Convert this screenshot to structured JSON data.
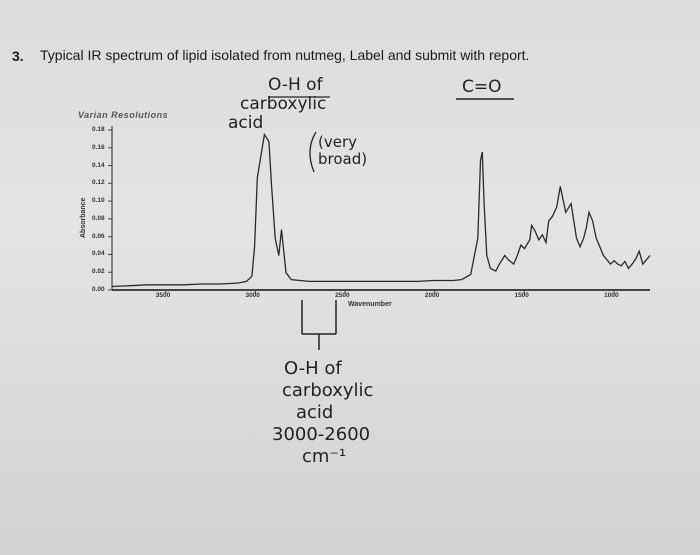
{
  "question": {
    "number": "3.",
    "text": "Typical IR spectrum of lipid isolated from nutmeg, Label and submit with report."
  },
  "handwritten": {
    "oh_top": [
      "O-H of",
      "carboxylic",
      "acid"
    ],
    "very_broad": [
      "(very",
      "broad)"
    ],
    "co_label": "C=O",
    "oh_bottom": [
      "O-H of",
      "carboxylic",
      "acid",
      "3000-2600",
      "cm⁻¹"
    ]
  },
  "chart_data": {
    "type": "line",
    "brand": "Varian Resolutions",
    "ylabel": "Absorbance",
    "xlabel": "Wavenumber",
    "yticks": [
      "0.18",
      "0.16",
      "0.14",
      "0.12",
      "0.10",
      "0.08",
      "0.06",
      "0.04",
      "0.02",
      "0.00"
    ],
    "xticks": [
      "3500",
      "3000",
      "2500",
      "2000",
      "1500",
      "1000"
    ],
    "x_range": [
      3800,
      800
    ],
    "y_range": [
      0.0,
      0.19
    ],
    "series": [
      {
        "values": [
          [
            3800,
            0.004
          ],
          [
            3700,
            0.005
          ],
          [
            3600,
            0.006
          ],
          [
            3500,
            0.006
          ],
          [
            3400,
            0.006
          ],
          [
            3300,
            0.007
          ],
          [
            3200,
            0.007
          ],
          [
            3100,
            0.008
          ],
          [
            3050,
            0.01
          ],
          [
            3020,
            0.016
          ],
          [
            3005,
            0.05
          ],
          [
            2990,
            0.13
          ],
          [
            2950,
            0.18
          ],
          [
            2925,
            0.172
          ],
          [
            2910,
            0.12
          ],
          [
            2890,
            0.06
          ],
          [
            2870,
            0.04
          ],
          [
            2855,
            0.07
          ],
          [
            2845,
            0.05
          ],
          [
            2830,
            0.02
          ],
          [
            2800,
            0.012
          ],
          [
            2700,
            0.01
          ],
          [
            2600,
            0.01
          ],
          [
            2500,
            0.01
          ],
          [
            2400,
            0.01
          ],
          [
            2300,
            0.01
          ],
          [
            2200,
            0.01
          ],
          [
            2100,
            0.01
          ],
          [
            2000,
            0.011
          ],
          [
            1900,
            0.011
          ],
          [
            1850,
            0.012
          ],
          [
            1800,
            0.018
          ],
          [
            1760,
            0.06
          ],
          [
            1745,
            0.15
          ],
          [
            1735,
            0.16
          ],
          [
            1725,
            0.1
          ],
          [
            1710,
            0.04
          ],
          [
            1690,
            0.025
          ],
          [
            1660,
            0.022
          ],
          [
            1640,
            0.03
          ],
          [
            1610,
            0.04
          ],
          [
            1590,
            0.035
          ],
          [
            1560,
            0.03
          ],
          [
            1540,
            0.04
          ],
          [
            1520,
            0.052
          ],
          [
            1500,
            0.048
          ],
          [
            1470,
            0.058
          ],
          [
            1460,
            0.075
          ],
          [
            1440,
            0.068
          ],
          [
            1420,
            0.058
          ],
          [
            1400,
            0.064
          ],
          [
            1380,
            0.055
          ],
          [
            1365,
            0.08
          ],
          [
            1345,
            0.085
          ],
          [
            1320,
            0.096
          ],
          [
            1300,
            0.12
          ],
          [
            1290,
            0.11
          ],
          [
            1270,
            0.09
          ],
          [
            1240,
            0.1
          ],
          [
            1225,
            0.08
          ],
          [
            1210,
            0.06
          ],
          [
            1190,
            0.05
          ],
          [
            1170,
            0.06
          ],
          [
            1155,
            0.072
          ],
          [
            1140,
            0.09
          ],
          [
            1120,
            0.08
          ],
          [
            1100,
            0.06
          ],
          [
            1080,
            0.05
          ],
          [
            1060,
            0.04
          ],
          [
            1040,
            0.035
          ],
          [
            1020,
            0.03
          ],
          [
            1000,
            0.034
          ],
          [
            980,
            0.03
          ],
          [
            960,
            0.028
          ],
          [
            940,
            0.033
          ],
          [
            920,
            0.025
          ],
          [
            900,
            0.03
          ],
          [
            880,
            0.036
          ],
          [
            860,
            0.045
          ],
          [
            840,
            0.03
          ],
          [
            820,
            0.035
          ],
          [
            800,
            0.04
          ]
        ]
      }
    ]
  },
  "colors": {
    "paper": "#dcdcdc",
    "ink": "#222222",
    "trace": "#2a2a2a"
  }
}
